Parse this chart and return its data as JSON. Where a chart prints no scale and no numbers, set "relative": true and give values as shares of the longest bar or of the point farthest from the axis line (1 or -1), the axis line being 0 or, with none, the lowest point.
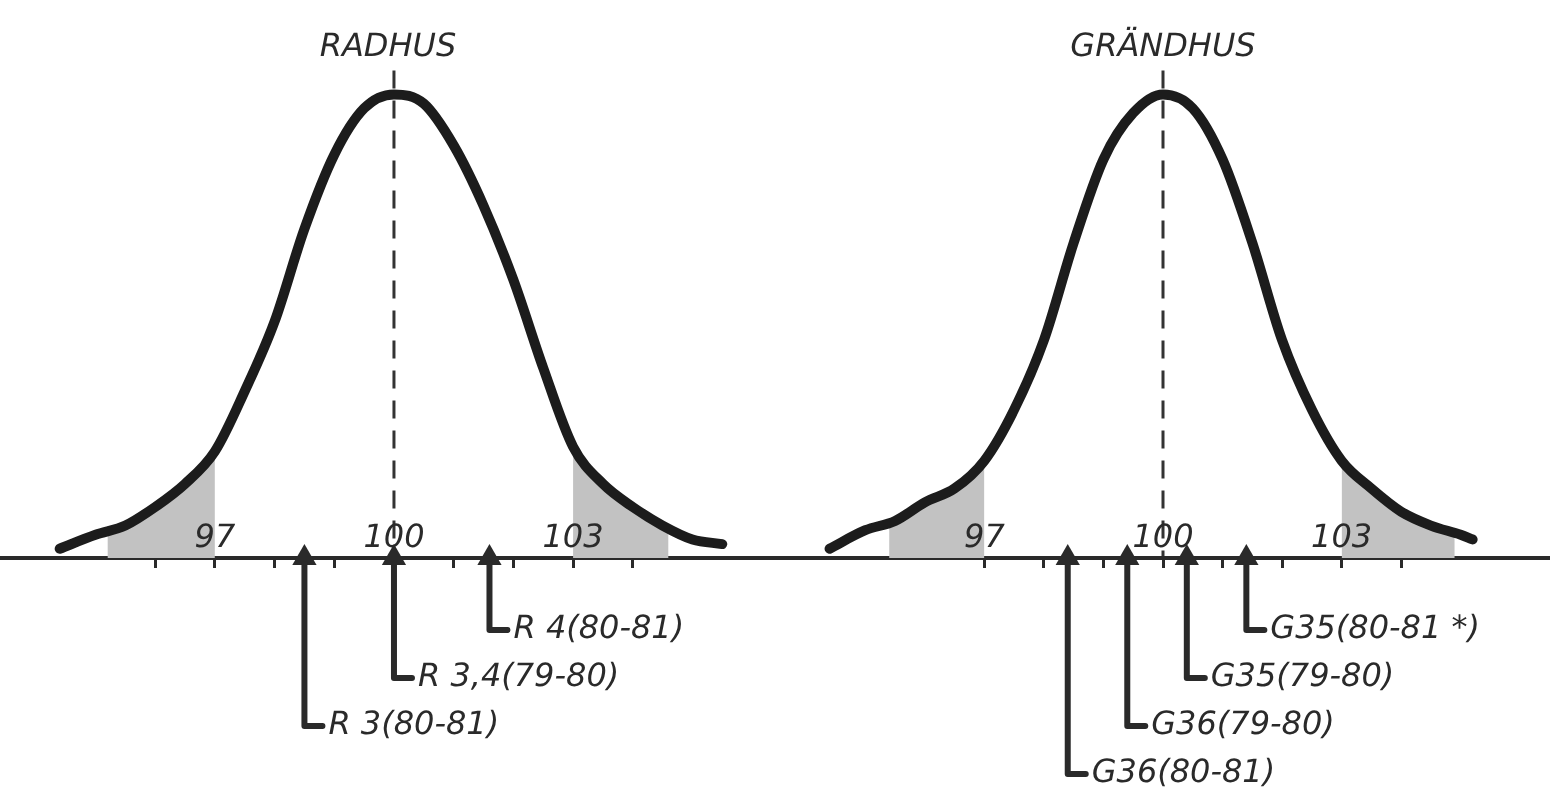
{
  "chart_data": [
    {
      "type": "line",
      "title": "RADHUS",
      "relative": true,
      "x": [
        94.4,
        95,
        95.5,
        96,
        96.5,
        97,
        97.5,
        98,
        98.5,
        99,
        99.5,
        100,
        100.5,
        101,
        101.5,
        102,
        102.5,
        103,
        103.5,
        104,
        104.5,
        105,
        105.5
      ],
      "series": [
        {
          "color": "#1c1c1c",
          "values": [
            0.02,
            0.05,
            0.07,
            0.11,
            0.16,
            0.23,
            0.36,
            0.51,
            0.71,
            0.87,
            0.97,
            1,
            0.98,
            0.89,
            0.76,
            0.6,
            0.41,
            0.24,
            0.16,
            0.11,
            0.07,
            0.04,
            0.03
          ]
        },
        {
          "type": "area",
          "color": "#c2c2c2",
          "x": [
            95.2,
            95.5,
            96,
            96.5,
            97
          ],
          "values": [
            0.06,
            0.07,
            0.11,
            0.16,
            0.23
          ]
        },
        {
          "type": "area",
          "color": "#c2c2c2",
          "x": [
            103,
            103.5,
            104,
            104.6
          ],
          "values": [
            0.24,
            0.16,
            0.11,
            0.07
          ]
        },
        {
          "type": "scatter",
          "name": "R 4(80-81)",
          "marker": "triangle",
          "color": "#2a2a2a",
          "x": [
            101.6
          ],
          "values": [
            0
          ]
        },
        {
          "type": "scatter",
          "name": "R 3,4(79-80)",
          "marker": "triangle",
          "color": "#2a2a2a",
          "x": [
            100
          ],
          "values": [
            0
          ]
        },
        {
          "type": "scatter",
          "name": "R 3(80-81)",
          "marker": "triangle",
          "color": "#2a2a2a",
          "x": [
            98.5
          ],
          "values": [
            0
          ]
        }
      ],
      "xlim": [
        93.4,
        106.4
      ],
      "xticks": [
        {
          "value": 96,
          "label": null
        },
        97,
        {
          "value": 98,
          "label": null
        },
        {
          "value": 99,
          "label": null
        },
        100,
        {
          "value": 101,
          "label": null
        },
        {
          "value": 102,
          "label": null
        },
        103,
        {
          "value": 104,
          "label": null
        }
      ],
      "ref_lines": [
        {
          "axis": "x",
          "value": 100,
          "line_style": "dashed",
          "color": "#333333"
        }
      ]
    },
    {
      "type": "line",
      "title": "GRÄNDHUS",
      "relative": true,
      "x": [
        94.4,
        95,
        95.5,
        96,
        96.5,
        97,
        97.5,
        98,
        98.5,
        99,
        99.5,
        100,
        100.5,
        101,
        101.5,
        102,
        102.5,
        103,
        103.5,
        104,
        104.5,
        105,
        105.2
      ],
      "series": [
        {
          "color": "#1c1c1c",
          "values": [
            0.02,
            0.06,
            0.08,
            0.12,
            0.15,
            0.21,
            0.32,
            0.47,
            0.68,
            0.86,
            0.96,
            1,
            0.97,
            0.86,
            0.68,
            0.47,
            0.32,
            0.21,
            0.15,
            0.1,
            0.07,
            0.05,
            0.04
          ]
        },
        {
          "type": "area",
          "color": "#c2c2c2",
          "x": [
            95.4,
            96,
            96.5,
            97
          ],
          "values": [
            0.08,
            0.12,
            0.15,
            0.21
          ]
        },
        {
          "type": "area",
          "color": "#c2c2c2",
          "x": [
            103,
            103.5,
            104,
            104.5,
            104.9
          ],
          "values": [
            0.21,
            0.15,
            0.1,
            0.07,
            0.05
          ]
        },
        {
          "type": "scatter",
          "name": "G35(80-81 *)",
          "marker": "triangle",
          "color": "#2a2a2a",
          "x": [
            101.4
          ],
          "values": [
            0
          ]
        },
        {
          "type": "scatter",
          "name": "G35(79-80)",
          "marker": "triangle",
          "color": "#2a2a2a",
          "x": [
            100.4
          ],
          "values": [
            0
          ]
        },
        {
          "type": "scatter",
          "name": "G36(79-80)",
          "marker": "triangle",
          "color": "#2a2a2a",
          "x": [
            99.4
          ],
          "values": [
            0
          ]
        },
        {
          "type": "scatter",
          "name": "G36(80-81)",
          "marker": "triangle",
          "color": "#2a2a2a",
          "x": [
            98.4
          ],
          "values": [
            0
          ]
        }
      ],
      "xlim": [
        93.5,
        106.5
      ],
      "xticks": [
        97,
        {
          "value": 98,
          "label": null
        },
        {
          "value": 99,
          "label": null
        },
        100,
        {
          "value": 101,
          "label": null
        },
        {
          "value": 102,
          "label": null
        },
        103,
        {
          "value": 104,
          "label": null
        }
      ],
      "ref_lines": [
        {
          "axis": "x",
          "value": 100,
          "line_style": "dashed",
          "color": "#333333"
        }
      ]
    }
  ]
}
